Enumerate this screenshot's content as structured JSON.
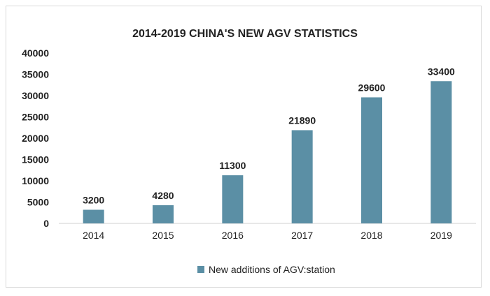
{
  "chart_data": {
    "type": "bar",
    "title": "2014-2019 CHINA'S NEW AGV STATISTICS",
    "categories": [
      "2014",
      "2015",
      "2016",
      "2017",
      "2018",
      "2019"
    ],
    "series": [
      {
        "name": "New additions of AGV:station",
        "values": [
          3200,
          4280,
          11300,
          21890,
          29600,
          33400
        ],
        "color": "#5b8fa5"
      }
    ],
    "data_labels": [
      "3200",
      "4280",
      "11300",
      "21890",
      "29600",
      "33400"
    ],
    "yticks": [
      "0",
      "5000",
      "10000",
      "15000",
      "20000",
      "25000",
      "30000",
      "35000",
      "40000"
    ],
    "ylim": [
      0,
      40000
    ],
    "grid": false,
    "legend": "bottom"
  }
}
